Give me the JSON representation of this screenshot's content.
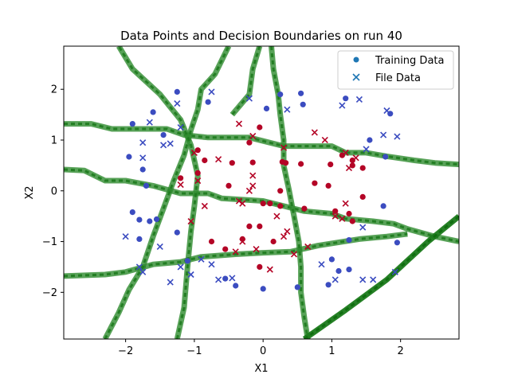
{
  "chart_data": {
    "type": "scatter",
    "title": "Data Points and Decision Boundaries on run 40",
    "xlabel": "X1",
    "ylabel": "X2",
    "xlim": [
      -2.9,
      2.85
    ],
    "ylim": [
      -2.92,
      2.85
    ],
    "xticks": [
      -2,
      -1,
      0,
      1,
      2
    ],
    "yticks": [
      -2,
      -1,
      0,
      1,
      2
    ],
    "xtick_labels": [
      "−2",
      "−1",
      "0",
      "1",
      "2"
    ],
    "ytick_labels": [
      "−2",
      "−1",
      "0",
      "1",
      "2"
    ],
    "grid": false,
    "legend_position": "top-right",
    "colors": {
      "class0": "#3b4cc0",
      "class1": "#b40426",
      "boundary": "#2e8b2e",
      "boundary_dark": "#1a7a1a"
    },
    "legend": [
      {
        "label": "Training Data",
        "marker": "circle",
        "color": "#1f77b4"
      },
      {
        "label": "File Data",
        "marker": "x",
        "color": "#1f77b4"
      }
    ],
    "series": [
      {
        "name": "Training Data",
        "marker": "circle",
        "points": [
          [
            -1.95,
            0.67
          ],
          [
            -1.6,
            1.55
          ],
          [
            -1.45,
            1.1
          ],
          [
            -1.25,
            1.95
          ],
          [
            -0.8,
            1.75
          ],
          [
            -1.9,
            1.32
          ],
          [
            -1.75,
            0.42
          ],
          [
            -1.9,
            -0.42
          ],
          [
            -1.8,
            -0.57
          ],
          [
            -1.8,
            -0.95
          ],
          [
            -1.65,
            -0.6
          ],
          [
            -1.55,
            -0.56
          ],
          [
            -1.7,
            0.1
          ],
          [
            0.05,
            1.62
          ],
          [
            0.25,
            1.9
          ],
          [
            0.55,
            1.92
          ],
          [
            0.58,
            1.7
          ],
          [
            1.2,
            1.82
          ],
          [
            1.55,
            1.0
          ],
          [
            1.85,
            1.52
          ],
          [
            1.78,
            0.67
          ],
          [
            1.75,
            -0.3
          ],
          [
            1.95,
            -1.02
          ],
          [
            1.0,
            -1.35
          ],
          [
            1.1,
            -1.58
          ],
          [
            1.25,
            -1.55
          ],
          [
            0.95,
            -1.85
          ],
          [
            1.25,
            -0.97
          ],
          [
            0.5,
            -1.9
          ],
          [
            0.0,
            -1.93
          ],
          [
            -0.4,
            -1.87
          ],
          [
            -0.55,
            -1.73
          ],
          [
            -1.1,
            -1.38
          ],
          [
            -1.25,
            -0.82
          ],
          [
            -0.95,
            0.8
          ],
          [
            -0.85,
            0.6
          ],
          [
            -0.45,
            0.55
          ],
          [
            -0.15,
            0.56
          ],
          [
            -0.05,
            1.25
          ],
          [
            -0.2,
            0.95
          ],
          [
            0.28,
            0.57
          ],
          [
            0.33,
            0.55
          ],
          [
            0.55,
            0.53
          ],
          [
            0.75,
            0.15
          ],
          [
            0.95,
            0.1
          ],
          [
            0.98,
            0.52
          ],
          [
            1.15,
            0.7
          ],
          [
            1.3,
            0.5
          ],
          [
            1.45,
            0.45
          ],
          [
            1.3,
            0.6
          ],
          [
            -1.2,
            0.25
          ],
          [
            -0.95,
            0.35
          ],
          [
            -0.5,
            0.1
          ],
          [
            0.25,
            -0.0
          ],
          [
            0.1,
            -0.25
          ],
          [
            -0.2,
            -0.7
          ],
          [
            -0.05,
            -0.7
          ],
          [
            0.15,
            -1.0
          ],
          [
            0.25,
            -0.3
          ],
          [
            0.6,
            -0.35
          ],
          [
            1.05,
            -0.4
          ],
          [
            1.25,
            -0.45
          ],
          [
            1.3,
            -0.6
          ],
          [
            1.45,
            -0.12
          ],
          [
            -0.3,
            -0.95
          ],
          [
            -0.75,
            -1.0
          ],
          [
            -0.55,
            -1.15
          ],
          [
            -0.05,
            -1.5
          ],
          [
            0.0,
            -0.25
          ]
        ],
        "classes": [
          0,
          0,
          0,
          0,
          0,
          0,
          0,
          0,
          0,
          0,
          0,
          0,
          0,
          0,
          0,
          0,
          0,
          0,
          0,
          0,
          0,
          0,
          0,
          0,
          0,
          0,
          0,
          0,
          0,
          0,
          0,
          0,
          0,
          0,
          1,
          1,
          1,
          1,
          1,
          1,
          1,
          1,
          1,
          1,
          1,
          1,
          1,
          1,
          1,
          1,
          1,
          1,
          1,
          1,
          1,
          1,
          1,
          1,
          1,
          1,
          1,
          1,
          1,
          1,
          1,
          1,
          1,
          1,
          1
        ]
      },
      {
        "name": "File Data",
        "marker": "x",
        "points": [
          [
            -1.25,
            1.72
          ],
          [
            -0.75,
            1.95
          ],
          [
            -1.65,
            1.35
          ],
          [
            -1.75,
            0.95
          ],
          [
            -1.75,
            0.65
          ],
          [
            -1.2,
            1.25
          ],
          [
            -1.35,
            0.93
          ],
          [
            -1.45,
            0.9
          ],
          [
            -2.0,
            -0.9
          ],
          [
            -1.8,
            -1.5
          ],
          [
            -1.75,
            -1.6
          ],
          [
            -1.5,
            -1.1
          ],
          [
            -1.35,
            -1.8
          ],
          [
            -1.2,
            -1.5
          ],
          [
            -1.05,
            -1.65
          ],
          [
            -0.9,
            -1.35
          ],
          [
            -0.75,
            -1.45
          ],
          [
            -0.65,
            -1.75
          ],
          [
            -0.45,
            -1.72
          ],
          [
            -0.2,
            1.82
          ],
          [
            0.35,
            1.6
          ],
          [
            1.15,
            1.68
          ],
          [
            1.4,
            1.8
          ],
          [
            1.8,
            1.58
          ],
          [
            1.95,
            1.07
          ],
          [
            1.75,
            1.1
          ],
          [
            1.5,
            0.82
          ],
          [
            1.6,
            -1.75
          ],
          [
            1.45,
            -1.75
          ],
          [
            1.45,
            -0.72
          ],
          [
            1.92,
            -1.6
          ],
          [
            0.85,
            -1.45
          ],
          [
            1.05,
            -1.75
          ],
          [
            -0.35,
            1.32
          ],
          [
            -0.15,
            1.08
          ],
          [
            0.3,
            0.85
          ],
          [
            0.75,
            1.15
          ],
          [
            0.9,
            1.0
          ],
          [
            1.2,
            0.75
          ],
          [
            1.25,
            0.45
          ],
          [
            1.35,
            0.65
          ],
          [
            -1.0,
            0.75
          ],
          [
            -0.65,
            0.62
          ],
          [
            -0.15,
            0.3
          ],
          [
            -0.15,
            0.1
          ],
          [
            -1.2,
            0.12
          ],
          [
            -1.05,
            -0.6
          ],
          [
            -0.95,
            0.2
          ],
          [
            -0.85,
            -0.3
          ],
          [
            -0.35,
            -0.2
          ],
          [
            -0.3,
            -0.25
          ],
          [
            -0.2,
            0.0
          ],
          [
            0.2,
            -0.5
          ],
          [
            0.3,
            -0.9
          ],
          [
            0.35,
            -0.8
          ],
          [
            0.1,
            -1.55
          ],
          [
            0.45,
            -1.25
          ],
          [
            0.65,
            -1.1
          ],
          [
            -0.4,
            -1.2
          ],
          [
            -0.3,
            -1.0
          ],
          [
            -0.1,
            -1.15
          ],
          [
            1.05,
            -0.5
          ],
          [
            1.15,
            -0.55
          ],
          [
            1.2,
            -0.25
          ]
        ],
        "classes": [
          0,
          0,
          0,
          0,
          0,
          0,
          0,
          0,
          0,
          0,
          0,
          0,
          0,
          0,
          0,
          0,
          0,
          0,
          0,
          0,
          0,
          0,
          0,
          0,
          0,
          0,
          0,
          0,
          0,
          0,
          0,
          0,
          0,
          1,
          1,
          1,
          1,
          1,
          1,
          1,
          1,
          1,
          1,
          1,
          1,
          1,
          1,
          1,
          1,
          1,
          1,
          1,
          1,
          1,
          1,
          1,
          1,
          1,
          1,
          1,
          1,
          1,
          1,
          1
        ]
      }
    ],
    "boundaries": [
      [
        [
          -2.9,
          1.32
        ],
        [
          -2.5,
          1.32
        ],
        [
          -2.2,
          1.22
        ],
        [
          -1.8,
          1.22
        ],
        [
          -1.4,
          1.22
        ],
        [
          -1.15,
          1.1
        ],
        [
          -0.8,
          1.05
        ],
        [
          -0.2,
          1.05
        ],
        [
          0.3,
          0.88
        ],
        [
          0.6,
          0.88
        ],
        [
          1.0,
          0.88
        ],
        [
          1.2,
          0.75
        ],
        [
          1.5,
          0.75
        ],
        [
          1.8,
          0.68
        ],
        [
          2.2,
          0.6
        ],
        [
          2.5,
          0.55
        ],
        [
          2.85,
          0.52
        ]
      ],
      [
        [
          -2.9,
          0.42
        ],
        [
          -2.6,
          0.4
        ],
        [
          -2.3,
          0.2
        ],
        [
          -2.0,
          0.2
        ],
        [
          -1.6,
          0.1
        ],
        [
          -1.2,
          -0.05
        ],
        [
          -0.8,
          -0.05
        ],
        [
          -0.6,
          -0.15
        ],
        [
          0.0,
          -0.2
        ],
        [
          0.3,
          -0.3
        ],
        [
          0.6,
          -0.4
        ],
        [
          1.0,
          -0.45
        ],
        [
          1.2,
          -0.55
        ],
        [
          1.6,
          -0.6
        ],
        [
          1.9,
          -0.65
        ],
        [
          2.1,
          -0.75
        ],
        [
          2.5,
          -0.9
        ],
        [
          2.85,
          -1.0
        ]
      ],
      [
        [
          -2.9,
          -1.68
        ],
        [
          -2.3,
          -1.65
        ],
        [
          -2.0,
          -1.6
        ],
        [
          -1.6,
          -1.45
        ],
        [
          -1.2,
          -1.4
        ],
        [
          -0.9,
          -1.3
        ],
        [
          -0.4,
          -1.25
        ],
        [
          0.0,
          -1.22
        ],
        [
          0.4,
          -1.2
        ],
        [
          0.8,
          -1.08
        ],
        [
          1.4,
          -0.95
        ],
        [
          1.8,
          -0.9
        ],
        [
          2.1,
          -0.85
        ]
      ],
      [
        [
          -2.3,
          -2.92
        ],
        [
          -2.1,
          -2.4
        ],
        [
          -1.95,
          -1.95
        ],
        [
          -1.75,
          -1.5
        ],
        [
          -1.6,
          -0.9
        ],
        [
          -1.45,
          -0.35
        ],
        [
          -1.3,
          0.2
        ],
        [
          -1.15,
          0.7
        ],
        [
          -1.05,
          1.2
        ],
        [
          -0.95,
          1.6
        ],
        [
          -0.9,
          2.0
        ],
        [
          -0.7,
          2.3
        ],
        [
          -0.5,
          2.85
        ]
      ],
      [
        [
          -1.25,
          -2.92
        ],
        [
          -1.15,
          -2.3
        ],
        [
          -1.1,
          -1.5
        ],
        [
          -1.05,
          -0.8
        ],
        [
          -1.0,
          -0.3
        ],
        [
          -0.95,
          0.3
        ],
        [
          -1.05,
          0.9
        ],
        [
          -1.2,
          1.4
        ],
        [
          -1.5,
          1.9
        ],
        [
          -1.9,
          2.4
        ],
        [
          -2.1,
          2.85
        ]
      ],
      [
        [
          0.12,
          2.85
        ],
        [
          0.15,
          2.4
        ],
        [
          0.22,
          1.9
        ],
        [
          0.25,
          1.5
        ],
        [
          0.3,
          1.0
        ],
        [
          0.3,
          0.5
        ],
        [
          0.38,
          0.0
        ],
        [
          0.45,
          -0.5
        ],
        [
          0.52,
          -1.0
        ],
        [
          0.55,
          -1.5
        ],
        [
          0.55,
          -2.0
        ],
        [
          0.6,
          -2.5
        ],
        [
          0.65,
          -2.92
        ]
      ],
      [
        [
          -0.05,
          2.85
        ],
        [
          -0.15,
          2.4
        ],
        [
          -0.2,
          1.9
        ],
        [
          -0.45,
          1.5
        ]
      ],
      [
        [
          0.6,
          -2.92
        ],
        [
          1.2,
          -2.35
        ],
        [
          1.8,
          -1.75
        ],
        [
          2.4,
          -1.0
        ],
        [
          2.85,
          -0.5
        ]
      ]
    ]
  }
}
